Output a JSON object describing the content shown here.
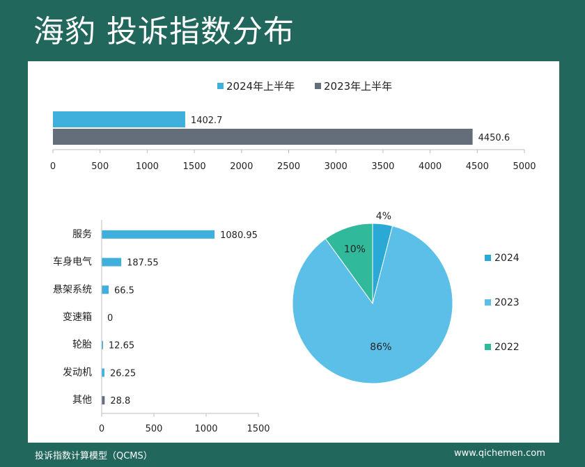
{
  "header": {
    "title": "海豹 投诉指数分布"
  },
  "footer": {
    "left": "投诉指数计算模型（QCMS）",
    "right": "www.qichemen.com"
  },
  "colors": {
    "accent_blue": "#3fb0dc",
    "dark_gray": "#646e7a",
    "pie_2024": "#2aa8d6",
    "pie_2023": "#5cbfe8",
    "pie_2022": "#30b99a",
    "background": "#22675c"
  },
  "chart_data": [
    {
      "type": "bar",
      "orientation": "horizontal",
      "categories": [
        ""
      ],
      "series": [
        {
          "name": "2024年上半年",
          "values": [
            1402.7
          ],
          "labels": [
            "1402.7"
          ],
          "color": "#3fb0dc"
        },
        {
          "name": "2023年上半年",
          "values": [
            4450.6
          ],
          "labels": [
            "4450.6"
          ],
          "color": "#646e7a"
        }
      ],
      "xlim": [
        0,
        5000
      ],
      "xticks": [
        "0",
        "500",
        "1000",
        "1500",
        "2000",
        "2500",
        "3000",
        "3500",
        "4000",
        "4500",
        "5000"
      ],
      "legend": "top"
    },
    {
      "type": "bar",
      "orientation": "horizontal",
      "categories": [
        "服务",
        "车身电气",
        "悬架系统",
        "变速箱",
        "轮胎",
        "发动机",
        "其他"
      ],
      "values": [
        1080.95,
        187.55,
        66.5,
        0,
        12.65,
        26.25,
        28.8
      ],
      "labels": [
        "1080.95",
        "187.55",
        "66.5",
        "0",
        "12.65",
        "26.25",
        "28.8"
      ],
      "bar_colors": [
        "#3fb0dc",
        "#3fb0dc",
        "#3fb0dc",
        "#3fb0dc",
        "#3fb0dc",
        "#3fb0dc",
        "#646e7a"
      ],
      "xlim": [
        0,
        1500
      ],
      "xticks": [
        "0",
        "500",
        "1000",
        "1500"
      ]
    },
    {
      "type": "pie",
      "slices": [
        {
          "label": "2024",
          "value": 4,
          "text": "4%",
          "color": "#2aa8d6"
        },
        {
          "label": "2023",
          "value": 86,
          "text": "86%",
          "color": "#5cbfe8"
        },
        {
          "label": "2022",
          "value": 10,
          "text": "10%",
          "color": "#30b99a"
        }
      ],
      "legend": "right"
    }
  ]
}
